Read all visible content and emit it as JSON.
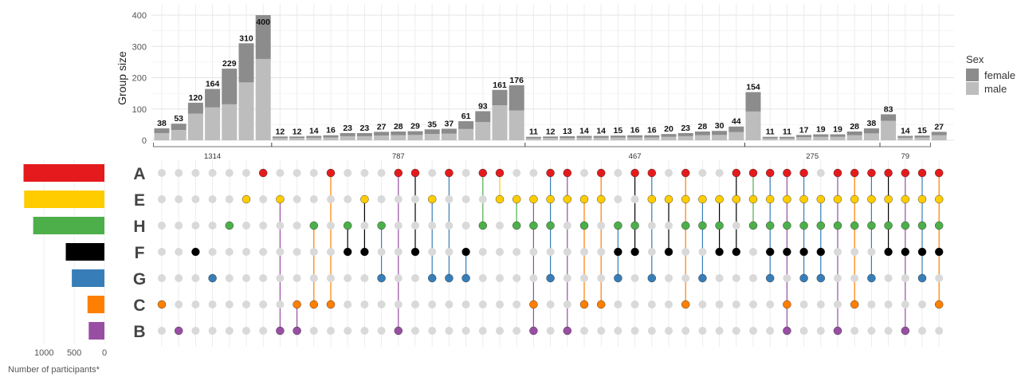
{
  "chart_data": {
    "type": "bar",
    "ylabel": "Group size",
    "yticks": [
      0,
      100,
      200,
      300,
      400
    ],
    "ylim": [
      0,
      430
    ],
    "legend": {
      "title": "Sex",
      "placement": "right",
      "items": [
        {
          "label": "female",
          "color": "#8c8c8c"
        },
        {
          "label": "male",
          "color": "#bdbdbd"
        }
      ]
    },
    "set_names": [
      "A",
      "E",
      "H",
      "F",
      "G",
      "C",
      "B"
    ],
    "set_colors": {
      "A": "#e41a1c",
      "E": "#ffcc00",
      "H": "#4daf4a",
      "F": "#000000",
      "G": "#377eb8",
      "C": "#ff7f00",
      "B": "#984ea3"
    },
    "set_size_axis": {
      "label": "Number of participants*",
      "ticks": [
        1000,
        500,
        0
      ],
      "tick_labels": [
        "1000",
        "500",
        "0"
      ],
      "max": 1360
    },
    "set_sizes": {
      "A": 1340,
      "E": 1330,
      "H": 1180,
      "F": 640,
      "G": 540,
      "C": 280,
      "B": 260
    },
    "groups": [
      {
        "label": "1314",
        "start": 0,
        "end": 6
      },
      {
        "label": "787",
        "start": 7,
        "end": 21
      },
      {
        "label": "467",
        "start": 22,
        "end": 34
      },
      {
        "label": "275",
        "start": 35,
        "end": 42
      },
      {
        "label": "79",
        "start": 43,
        "end": 45
      }
    ],
    "bars": [
      {
        "total": 38,
        "male": 23,
        "members": [
          "C"
        ]
      },
      {
        "total": 53,
        "male": 33,
        "members": [
          "B"
        ]
      },
      {
        "total": 120,
        "male": 85,
        "members": [
          "F"
        ]
      },
      {
        "total": 164,
        "male": 105,
        "members": [
          "G"
        ]
      },
      {
        "total": 229,
        "male": 115,
        "members": [
          "H"
        ]
      },
      {
        "total": 310,
        "male": 185,
        "members": [
          "E"
        ]
      },
      {
        "total": 400,
        "male": 260,
        "members": [
          "A"
        ]
      },
      {
        "total": 12,
        "male": 7,
        "members": [
          "E",
          "B"
        ]
      },
      {
        "total": 12,
        "male": 7,
        "members": [
          "C",
          "B"
        ]
      },
      {
        "total": 14,
        "male": 8,
        "members": [
          "H",
          "C"
        ]
      },
      {
        "total": 16,
        "male": 9,
        "members": [
          "A",
          "C"
        ]
      },
      {
        "total": 23,
        "male": 13,
        "members": [
          "H",
          "F"
        ]
      },
      {
        "total": 23,
        "male": 13,
        "members": [
          "E",
          "F"
        ]
      },
      {
        "total": 27,
        "male": 15,
        "members": [
          "H",
          "G"
        ]
      },
      {
        "total": 28,
        "male": 16,
        "members": [
          "A",
          "B"
        ]
      },
      {
        "total": 29,
        "male": 17,
        "members": [
          "A",
          "F"
        ]
      },
      {
        "total": 35,
        "male": 20,
        "members": [
          "E",
          "G"
        ]
      },
      {
        "total": 37,
        "male": 21,
        "members": [
          "A",
          "G"
        ]
      },
      {
        "total": 61,
        "male": 36,
        "members": [
          "F",
          "G"
        ]
      },
      {
        "total": 93,
        "male": 58,
        "members": [
          "A",
          "H"
        ]
      },
      {
        "total": 161,
        "male": 112,
        "members": [
          "A",
          "E"
        ]
      },
      {
        "total": 176,
        "male": 95,
        "members": [
          "E",
          "H"
        ]
      },
      {
        "total": 11,
        "male": 6,
        "members": [
          "E",
          "H",
          "C",
          "B"
        ]
      },
      {
        "total": 12,
        "male": 7,
        "members": [
          "A",
          "E",
          "H",
          "G"
        ]
      },
      {
        "total": 13,
        "male": 7,
        "members": [
          "A",
          "E",
          "B"
        ]
      },
      {
        "total": 14,
        "male": 8,
        "members": [
          "E",
          "H",
          "C"
        ]
      },
      {
        "total": 14,
        "male": 8,
        "members": [
          "A",
          "E",
          "C"
        ]
      },
      {
        "total": 15,
        "male": 9,
        "members": [
          "H",
          "F",
          "G"
        ]
      },
      {
        "total": 16,
        "male": 9,
        "members": [
          "A",
          "H",
          "F"
        ]
      },
      {
        "total": 16,
        "male": 9,
        "members": [
          "A",
          "E",
          "G"
        ]
      },
      {
        "total": 20,
        "male": 11,
        "members": [
          "E",
          "F"
        ]
      },
      {
        "total": 23,
        "male": 13,
        "members": [
          "A",
          "E",
          "H",
          "C"
        ]
      },
      {
        "total": 28,
        "male": 16,
        "members": [
          "E",
          "H",
          "G"
        ]
      },
      {
        "total": 30,
        "male": 17,
        "members": [
          "E",
          "H",
          "F"
        ]
      },
      {
        "total": 44,
        "male": 26,
        "members": [
          "A",
          "E",
          "F"
        ]
      },
      {
        "total": 154,
        "male": 92,
        "members": [
          "A",
          "E",
          "H"
        ]
      },
      {
        "total": 11,
        "male": 6,
        "members": [
          "A",
          "E",
          "H",
          "F",
          "G"
        ]
      },
      {
        "total": 11,
        "male": 6,
        "members": [
          "A",
          "E",
          "H",
          "F",
          "C",
          "B"
        ]
      },
      {
        "total": 17,
        "male": 10,
        "members": [
          "A",
          "E",
          "H",
          "F",
          "G"
        ]
      },
      {
        "total": 19,
        "male": 11,
        "members": [
          "E",
          "H",
          "F",
          "G"
        ]
      },
      {
        "total": 19,
        "male": 11,
        "members": [
          "A",
          "E",
          "H",
          "B"
        ]
      },
      {
        "total": 28,
        "male": 16,
        "members": [
          "A",
          "E",
          "H",
          "C"
        ]
      },
      {
        "total": 38,
        "male": 22,
        "members": [
          "A",
          "E",
          "H",
          "G"
        ]
      },
      {
        "total": 83,
        "male": 62,
        "members": [
          "A",
          "E",
          "H",
          "F"
        ]
      },
      {
        "total": 14,
        "male": 8,
        "members": [
          "A",
          "E",
          "H",
          "F",
          "B"
        ]
      },
      {
        "total": 15,
        "male": 9,
        "members": [
          "A",
          "E",
          "H",
          "F",
          "G"
        ]
      },
      {
        "total": 27,
        "male": 16,
        "members": [
          "A",
          "E",
          "H",
          "F",
          "C"
        ]
      }
    ]
  }
}
